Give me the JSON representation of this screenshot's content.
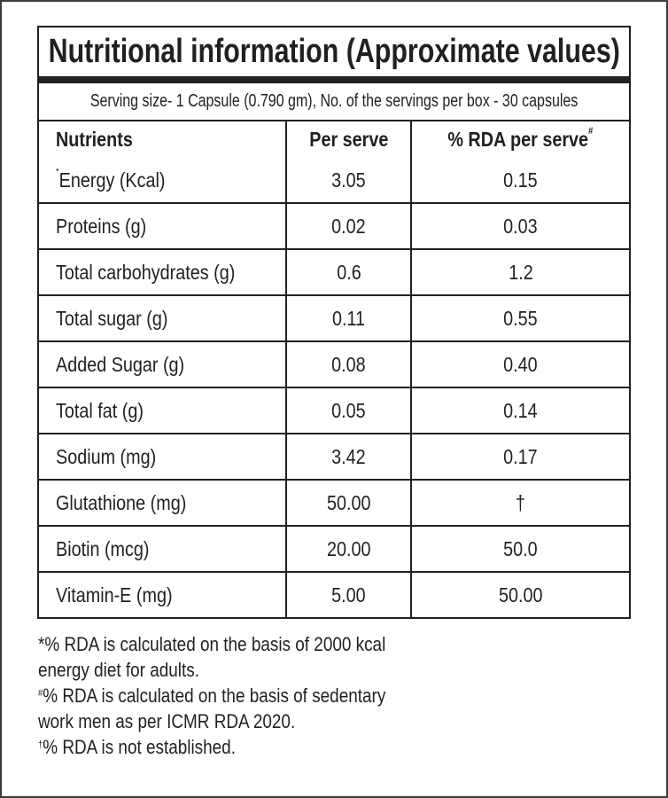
{
  "title": "Nutritional information (Approximate values)",
  "serving": "Serving size- 1 Capsule (0.790 gm), No. of the servings per box - 30 capsules",
  "headers": {
    "nutrients": "Nutrients",
    "per_serve": "Per serve",
    "rda": "% RDA per serve",
    "rda_mark": "#"
  },
  "rows": [
    {
      "mark": "*",
      "nutrient": "Energy (Kcal)",
      "per_serve": "3.05",
      "rda": "0.15"
    },
    {
      "nutrient": "Proteins (g)",
      "per_serve": "0.02",
      "rda": "0.03"
    },
    {
      "nutrient": "Total carbohydrates (g)",
      "per_serve": "0.6",
      "rda": "1.2"
    },
    {
      "nutrient": "Total sugar (g)",
      "per_serve": "0.11",
      "rda": "0.55"
    },
    {
      "nutrient": "Added Sugar (g)",
      "per_serve": "0.08",
      "rda": "0.40"
    },
    {
      "nutrient": "Total fat (g)",
      "per_serve": "0.05",
      "rda": "0.14"
    },
    {
      "nutrient": "Sodium (mg)",
      "per_serve": "3.42",
      "rda": "0.17"
    },
    {
      "nutrient": "Glutathione (mg)",
      "per_serve": "50.00",
      "rda": "†"
    },
    {
      "nutrient": "Biotin (mcg)",
      "per_serve": "20.00",
      "rda": "50.0"
    },
    {
      "nutrient": "Vitamin-E (mg)",
      "per_serve": "5.00",
      "rda": "50.00"
    }
  ],
  "footnotes": {
    "n1_line1": "*% RDA is calculated on the basis of 2000 kcal",
    "n1_line2": "energy diet for adults.",
    "n2_mark": "#",
    "n2_line1": "% RDA is calculated on the basis of sedentary",
    "n2_line2": "work men as per ICMR RDA 2020.",
    "n3_mark": "†",
    "n3_line1": "% RDA is not established."
  }
}
